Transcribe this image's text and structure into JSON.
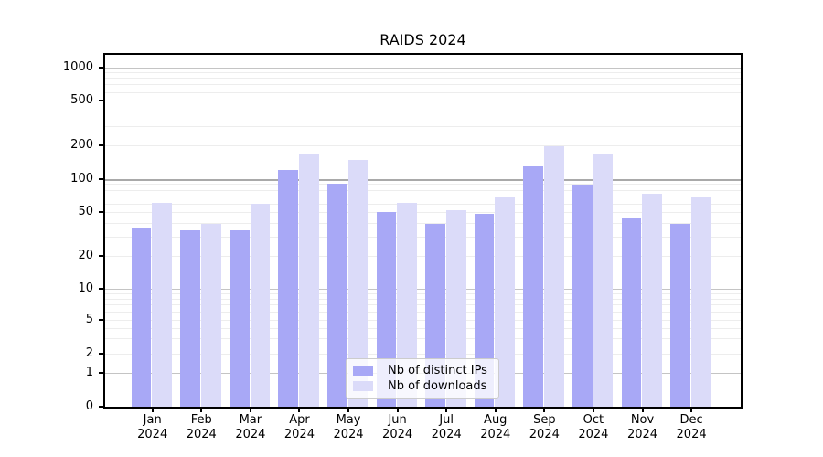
{
  "chart_data": {
    "type": "bar",
    "title": "RAIDS 2024",
    "categories": [
      "Jan 2024",
      "Feb 2024",
      "Mar 2024",
      "Apr 2024",
      "May 2024",
      "Jun 2024",
      "Jul 2024",
      "Aug 2024",
      "Sep 2024",
      "Oct 2024",
      "Nov 2024",
      "Dec 2024"
    ],
    "series": [
      {
        "name": "Nb of distinct IPs",
        "color": "#a8a8f6",
        "values": [
          36,
          34,
          34,
          120,
          90,
          50,
          39,
          48,
          130,
          89,
          44,
          39
        ]
      },
      {
        "name": "Nb of downloads",
        "color": "#dbdbf9",
        "values": [
          61,
          39,
          60,
          165,
          148,
          61,
          52,
          69,
          198,
          170,
          73,
          69
        ]
      }
    ],
    "xlabel": "",
    "ylabel": "",
    "yscale": "symlog",
    "yticks": [
      0,
      1,
      2,
      5,
      10,
      20,
      50,
      100,
      200,
      500,
      1000
    ],
    "ytick_labels": [
      "0",
      "1",
      "2",
      "5",
      "10",
      "20",
      "50",
      "100",
      "200",
      "500",
      "1000"
    ],
    "ylim": [
      0,
      1300
    ],
    "grid": "horizontal major and minor gridlines",
    "legend_position": "lower center, inside plot"
  }
}
